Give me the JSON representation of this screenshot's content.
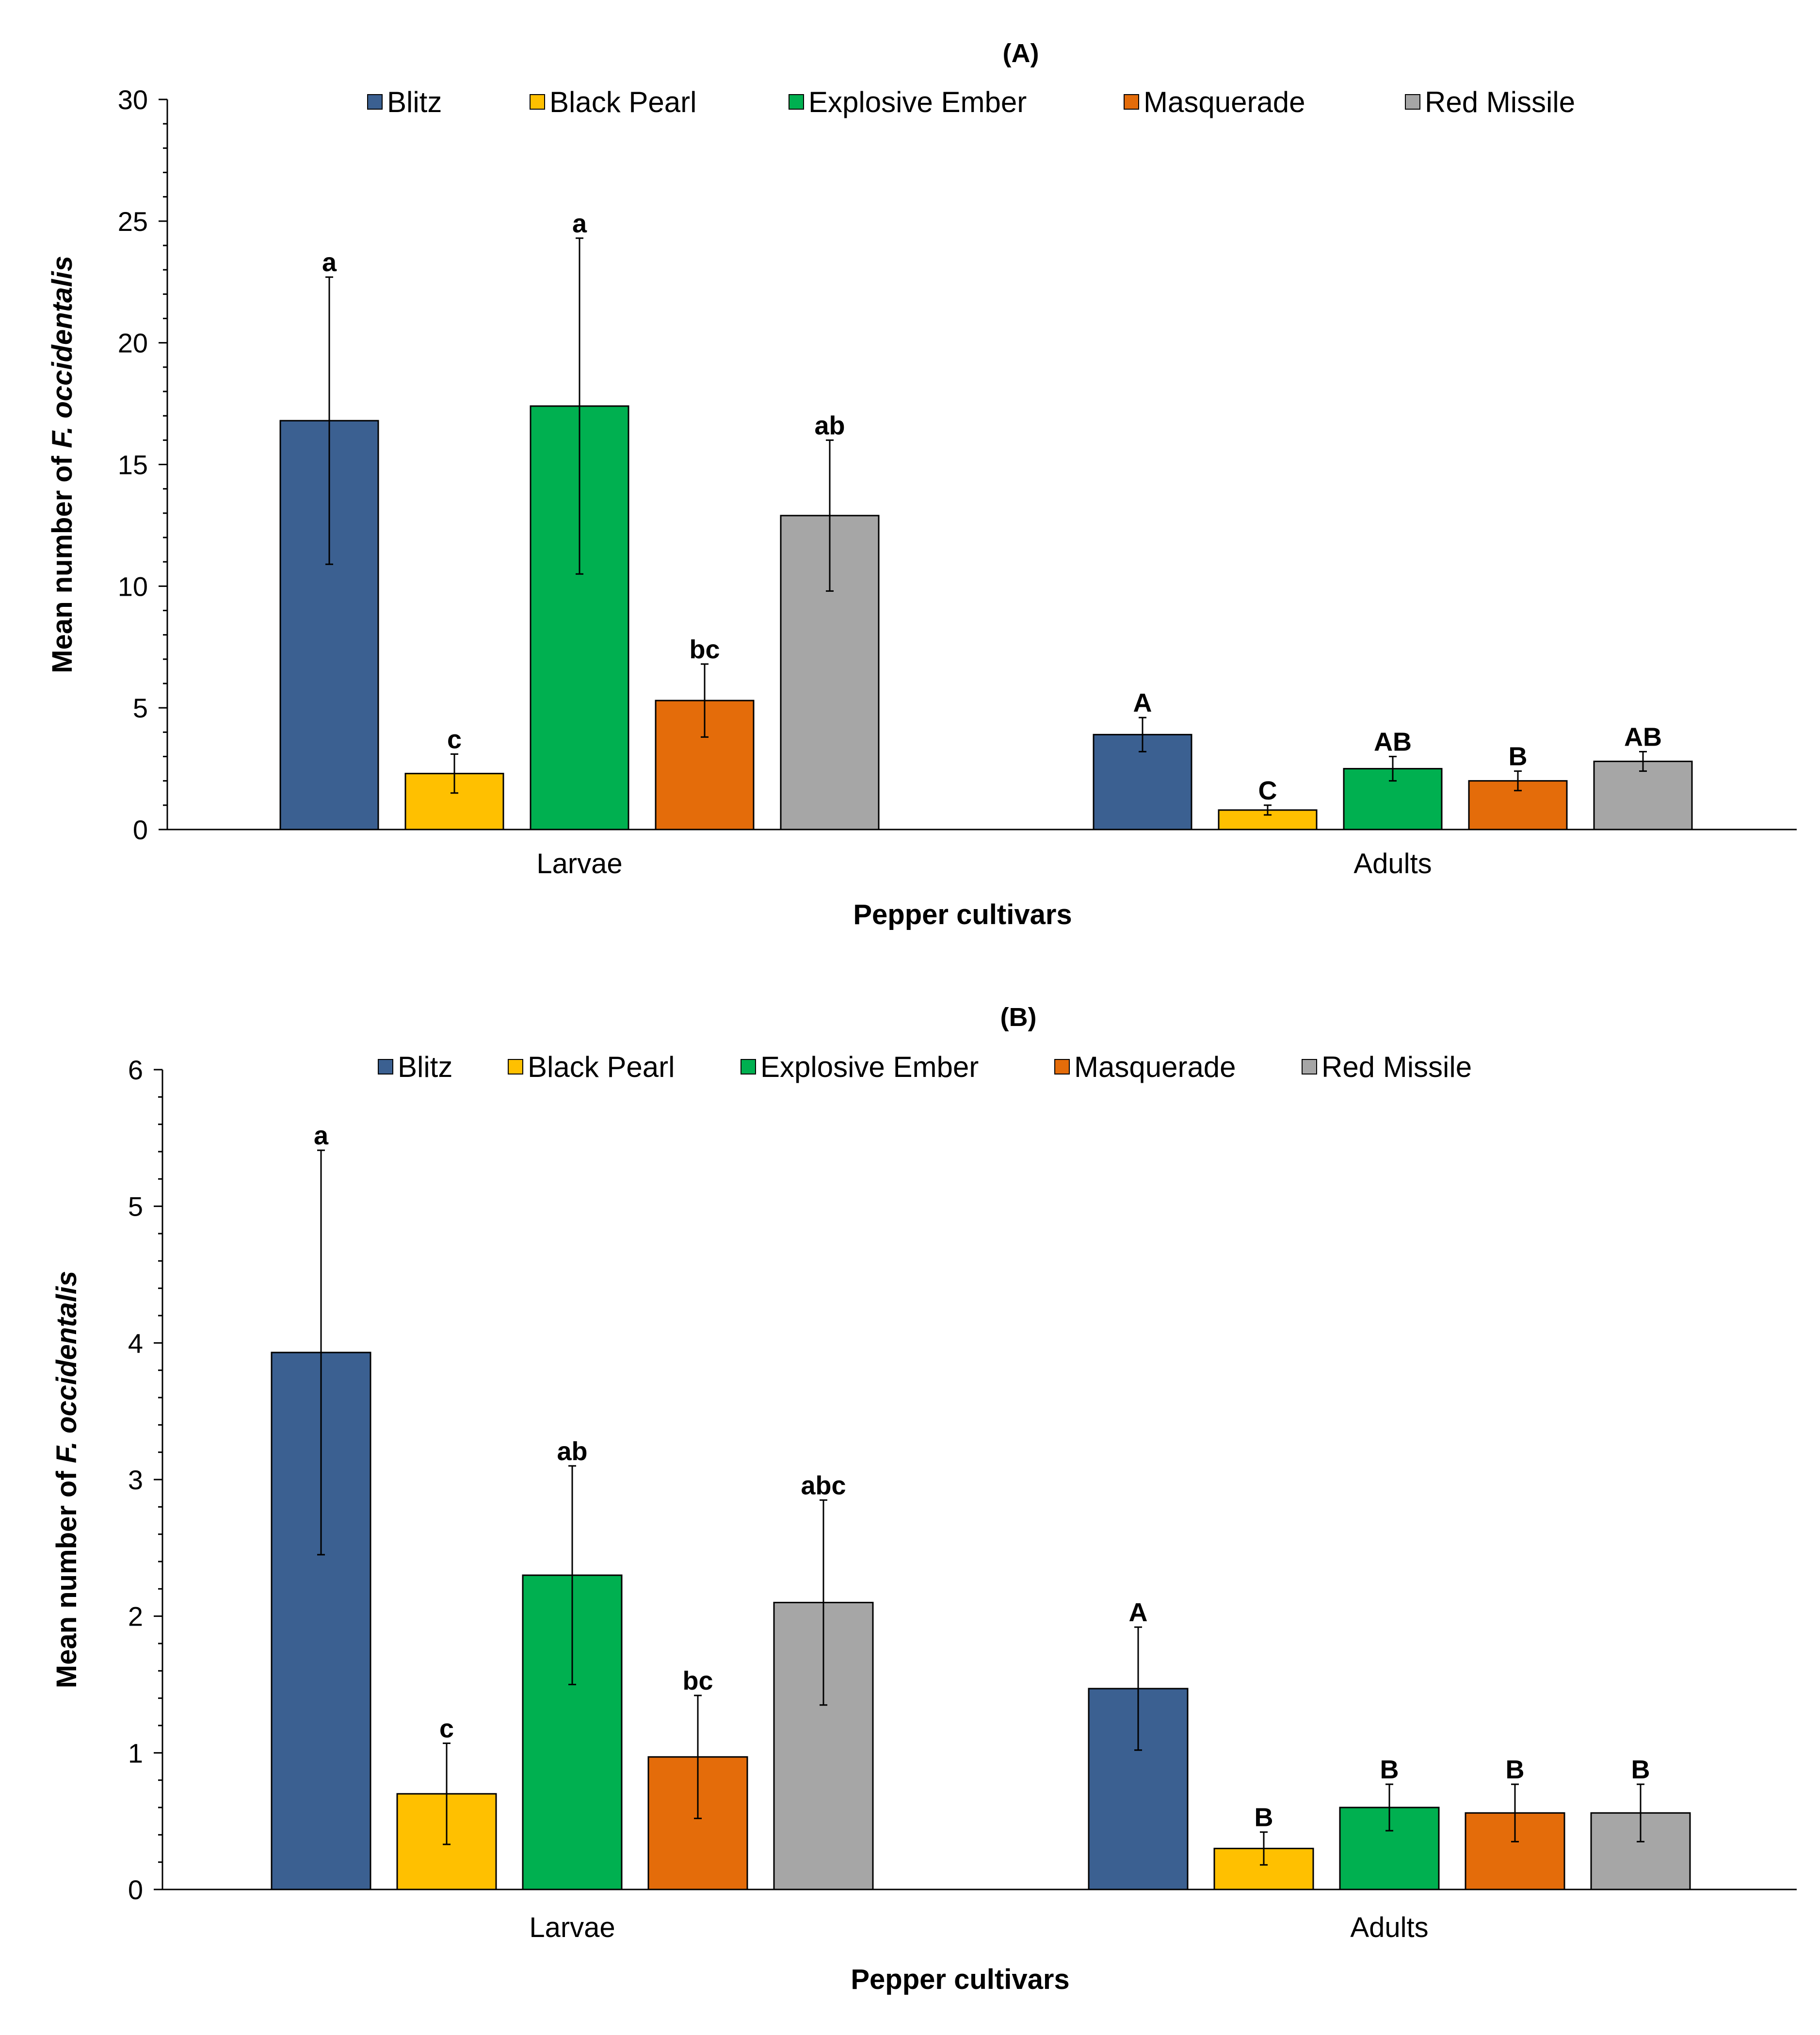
{
  "chart_data": [
    {
      "type": "bar",
      "title": "(A)",
      "xlabel": "Pepper cultivars",
      "ylabel_prefix": "Mean number of ",
      "ylabel_italic": "F. occidentalis",
      "ylim": [
        0,
        30
      ],
      "yticks": [
        0,
        5,
        10,
        15,
        20,
        25,
        30
      ],
      "legend_position": "top",
      "categories": [
        "Larvae",
        "Adults"
      ],
      "series": [
        {
          "name": "Blitz",
          "color": "#3B6091",
          "values": [
            16.8,
            3.9
          ],
          "errors": [
            5.9,
            0.7
          ],
          "letters": [
            "a",
            "A"
          ]
        },
        {
          "name": "Black Pearl",
          "color": "#FFC000",
          "values": [
            2.3,
            0.8
          ],
          "errors": [
            0.8,
            0.2
          ],
          "letters": [
            "c",
            "C"
          ]
        },
        {
          "name": "Explosive Ember",
          "color": "#00B050",
          "values": [
            17.4,
            2.5
          ],
          "errors": [
            6.9,
            0.5
          ],
          "letters": [
            "a",
            "AB"
          ]
        },
        {
          "name": "Masquerade",
          "color": "#E46C0A",
          "values": [
            5.3,
            2.0
          ],
          "errors": [
            1.5,
            0.4
          ],
          "letters": [
            "bc",
            "B"
          ]
        },
        {
          "name": "Red Missile",
          "color": "#A6A6A6",
          "values": [
            12.9,
            2.8
          ],
          "errors": [
            3.1,
            0.4
          ],
          "letters": [
            "ab",
            "AB"
          ]
        }
      ]
    },
    {
      "type": "bar",
      "title": "(B)",
      "xlabel": "Pepper cultivars",
      "ylabel_prefix": "Mean number of ",
      "ylabel_italic": "F. occidentalis",
      "ylim": [
        0,
        6
      ],
      "yticks": [
        0,
        1,
        2,
        3,
        4,
        5,
        6
      ],
      "legend_position": "top",
      "categories": [
        "Larvae",
        "Adults"
      ],
      "series": [
        {
          "name": "Blitz",
          "color": "#3B6091",
          "values": [
            3.93,
            1.47
          ],
          "errors": [
            1.48,
            0.45
          ],
          "letters": [
            "a",
            "A"
          ]
        },
        {
          "name": "Black Pearl",
          "color": "#FFC000",
          "values": [
            0.7,
            0.3
          ],
          "errors": [
            0.37,
            0.12
          ],
          "letters": [
            "c",
            "B"
          ]
        },
        {
          "name": "Explosive Ember",
          "color": "#00B050",
          "values": [
            2.3,
            0.6
          ],
          "errors": [
            0.8,
            0.17
          ],
          "letters": [
            "ab",
            "B"
          ]
        },
        {
          "name": "Masquerade",
          "color": "#E46C0A",
          "values": [
            0.97,
            0.56
          ],
          "errors": [
            0.45,
            0.21
          ],
          "letters": [
            "bc",
            "B"
          ]
        },
        {
          "name": "Red Missile",
          "color": "#A6A6A6",
          "values": [
            2.1,
            0.56
          ],
          "errors": [
            0.75,
            0.21
          ],
          "letters": [
            "abc",
            "B"
          ]
        }
      ]
    }
  ]
}
